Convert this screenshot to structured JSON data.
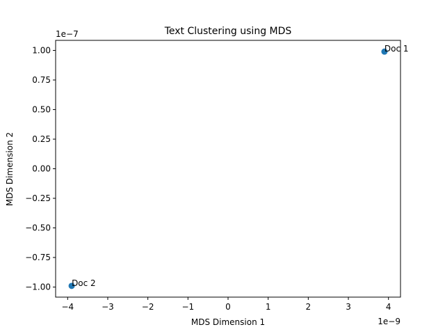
{
  "chart_data": {
    "type": "scatter",
    "title": "Text Clustering using MDS",
    "xlabel": "MDS Dimension 1",
    "ylabel": "MDS Dimension 2",
    "x_offset_label": "1e−9",
    "y_offset_label": "1e−7",
    "x_scale": 1e-09,
    "y_scale": 1e-07,
    "xlim": [
      -4.3,
      4.3
    ],
    "ylim": [
      -1.085,
      1.085
    ],
    "x_ticks": [
      -4,
      -3,
      -2,
      -1,
      0,
      1,
      2,
      3,
      4
    ],
    "x_tick_labels": [
      "−4",
      "−3",
      "−2",
      "−1",
      "0",
      "1",
      "2",
      "3",
      "4"
    ],
    "y_ticks": [
      -1.0,
      -0.75,
      -0.5,
      -0.25,
      0.0,
      0.25,
      0.5,
      0.75,
      1.0
    ],
    "y_tick_labels": [
      "−1.00",
      "−0.75",
      "−0.50",
      "−0.25",
      "0.00",
      "0.25",
      "0.50",
      "0.75",
      "1.00"
    ],
    "grid": false,
    "point_color": "#1f77b4",
    "points": [
      {
        "label": "Doc 1",
        "x": 3.9,
        "y": 0.99
      },
      {
        "label": "Doc 2",
        "x": -3.9,
        "y": -0.99
      }
    ]
  }
}
